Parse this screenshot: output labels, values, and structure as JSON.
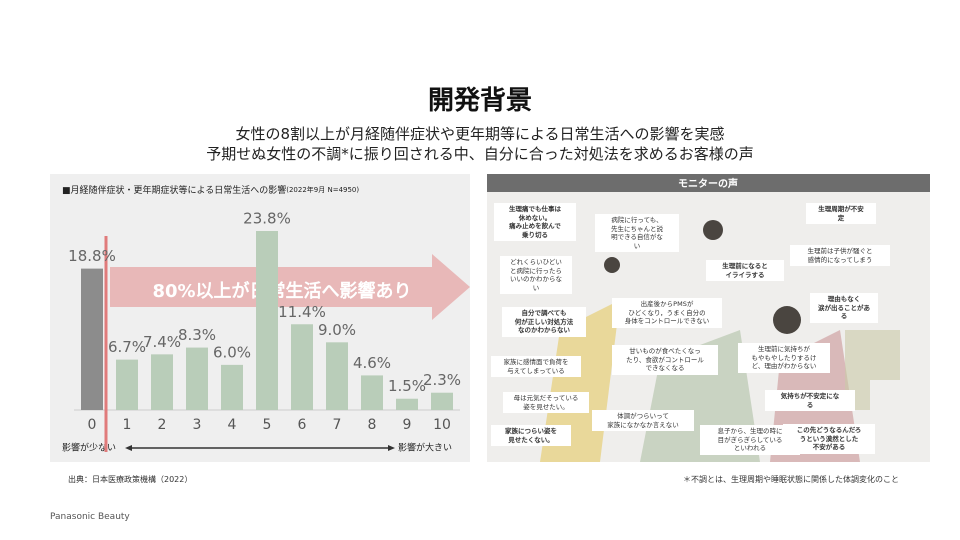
{
  "header": {
    "title": "開発背景",
    "subtitle": [
      "女性の8割以上が月経随伴症状や更年期等による日常生活への影響を実感",
      "予期せぬ女性の不調*に振り回される中、自分に合った対処法を求めるお客様の声"
    ]
  },
  "chart_data": {
    "type": "bar",
    "title": "■月経随伴症状・更年期症状等による日常生活への影響",
    "subtitle": "(2022年9月 N=4950)",
    "categories": [
      "0",
      "1",
      "2",
      "3",
      "4",
      "5",
      "6",
      "7",
      "8",
      "9",
      "10"
    ],
    "values": [
      18.8,
      6.7,
      7.4,
      8.3,
      6.0,
      23.8,
      11.4,
      9.0,
      4.6,
      1.5,
      2.3
    ],
    "value_labels": [
      "18.8%",
      "6.7%",
      "7.4%",
      "8.3%",
      "6.0%",
      "23.8%",
      "11.4%",
      "9.0%",
      "4.6%",
      "1.5%",
      "2.3%"
    ],
    "colors": [
      "#8c8c8c",
      "#b9cdb9",
      "#b9cdb9",
      "#b9cdb9",
      "#b9cdb9",
      "#b9cdb9",
      "#b9cdb9",
      "#b9cdb9",
      "#b9cdb9",
      "#b9cdb9",
      "#b9cdb9"
    ],
    "annotation": "80%以上が日常生活へ影響あり",
    "x_low_label": "影響が少ない",
    "x_high_label": "影響が大きい"
  },
  "source": "出典：日本医療政策機構（2022）",
  "footnote": "＊不調とは、生理周期や睡眠状態に関係した体調変化のこと",
  "brand": "Panasonic Beauty",
  "monitor": {
    "title": "モニターの声",
    "bubbles": [
      {
        "bold": true,
        "lines": [
          "生理痛でも仕事は",
          "休めない。",
          "痛み止めを飲んで",
          "乗り切る"
        ]
      },
      {
        "bold": false,
        "lines": [
          "病院に行っても、",
          "先生にちゃんと説",
          "明できる自信がな",
          "い"
        ]
      },
      {
        "bold": true,
        "lines": [
          "生理周期が不安",
          "定"
        ]
      },
      {
        "bold": false,
        "lines": [
          "どれくらいひどい",
          "と病院に行ったら",
          "いいのかわからな",
          "い"
        ]
      },
      {
        "bold": false,
        "lines": [
          "生理前は子供が騒ぐと",
          "感情的になってしまう"
        ]
      },
      {
        "bold": true,
        "lines": [
          "生理前になると",
          "イライラする"
        ]
      },
      {
        "bold": true,
        "lines": [
          "自分で調べても",
          "何が正しい対処方法",
          "なのかわからない"
        ]
      },
      {
        "bold": false,
        "lines": [
          "出産後からPMSが",
          "ひどくなり，うまく自分の",
          "身体をコントロールできない"
        ]
      },
      {
        "bold": true,
        "lines": [
          "理由もなく",
          "涙が出ることがあ",
          "る"
        ]
      },
      {
        "bold": false,
        "lines": [
          "甘いものが食べたくなっ",
          "たり、食欲がコントロール",
          "できなくなる"
        ]
      },
      {
        "bold": false,
        "lines": [
          "生理前に気持ちが",
          "もやもやしたりするけ",
          "ど、理由がわからない"
        ]
      },
      {
        "bold": false,
        "lines": [
          "家族に感情面で負荷を",
          "与えてしまっている"
        ]
      },
      {
        "bold": false,
        "lines": [
          "母は元気だそっている",
          "姿を見せたい。"
        ]
      },
      {
        "bold": true,
        "lines": [
          "気持ちが不安定にな",
          "る"
        ]
      },
      {
        "bold": false,
        "lines": [
          "体調がつらいって",
          "家族になかなか言えない"
        ]
      },
      {
        "bold": true,
        "lines": [
          "家族につらい姿を",
          "見せたくない。"
        ]
      },
      {
        "bold": false,
        "lines": [
          "息子から、生理の時に",
          "目がぎらぎらしている",
          "といわれる"
        ]
      },
      {
        "bold": true,
        "lines": [
          "この先どうなるんだろ",
          "うという漠然とした",
          "不安がある"
        ]
      }
    ]
  }
}
